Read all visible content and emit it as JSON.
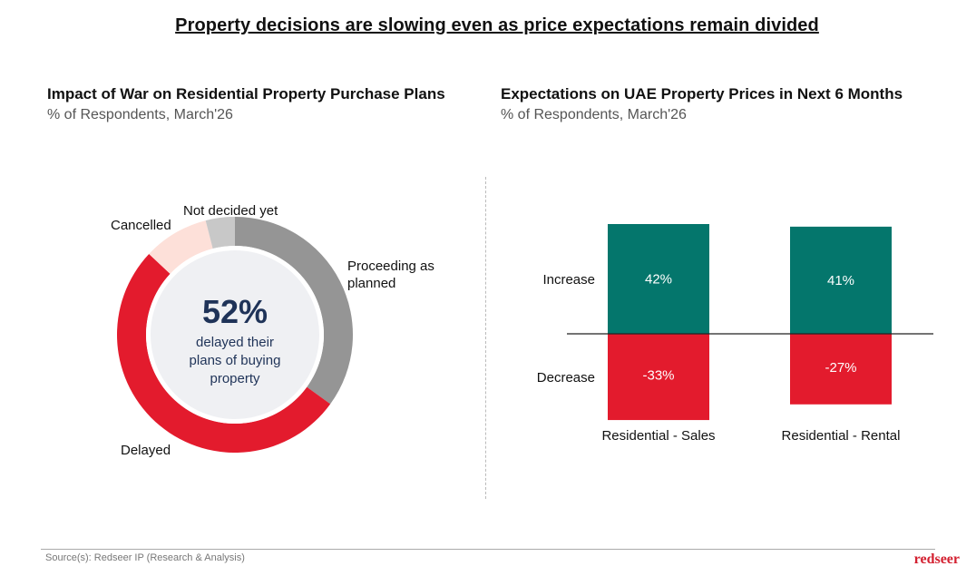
{
  "page": {
    "title": "Property decisions are slowing even as price expectations remain divided",
    "source": "Source(s): Redseer IP (Research & Analysis)",
    "brand": "redseer"
  },
  "colors": {
    "proceeding": "#959595",
    "delayed": "#e31b2d",
    "cancelled": "#fde0d9",
    "not_decided": "#c8c8c8",
    "increase": "#04766c",
    "decrease": "#e31b2d",
    "center_fill": "#eff0f3",
    "center_text": "#1f3358"
  },
  "chart_data": [
    {
      "type": "pie",
      "title": "Impact of War on Residential Property Purchase Plans",
      "subtitle": "% of Respondents, March'26",
      "slices": [
        {
          "label": "Proceeding as planned",
          "label_lines": [
            "Proceeding as",
            "planned"
          ],
          "value": 35,
          "color_key": "proceeding"
        },
        {
          "label": "Delayed",
          "label_lines": [
            "Delayed"
          ],
          "value": 52,
          "color_key": "delayed"
        },
        {
          "label": "Cancelled",
          "label_lines": [
            "Cancelled"
          ],
          "value": 9,
          "color_key": "cancelled"
        },
        {
          "label": "Not decided yet",
          "label_lines": [
            "Not decided yet"
          ],
          "value": 4,
          "color_key": "not_decided"
        }
      ],
      "center": {
        "value": "52%",
        "text_lines": [
          "delayed their",
          "plans of buying",
          "property"
        ]
      }
    },
    {
      "type": "bar",
      "title": "Expectations on UAE Property Prices in Next 6 Months",
      "subtitle": "% of Respondents, March'26",
      "categories": [
        "Residential - Sales",
        "Residential - Rental"
      ],
      "series": [
        {
          "name": "Increase",
          "values": [
            42,
            41
          ],
          "labels": [
            "42%",
            "41%"
          ],
          "color_key": "increase"
        },
        {
          "name": "Decrease",
          "values": [
            -33,
            -27
          ],
          "labels": [
            "-33%",
            "-27%"
          ],
          "color_key": "decrease"
        }
      ],
      "ylim": [
        -33,
        42
      ],
      "grid": false,
      "legend": "left-row-labels"
    }
  ]
}
